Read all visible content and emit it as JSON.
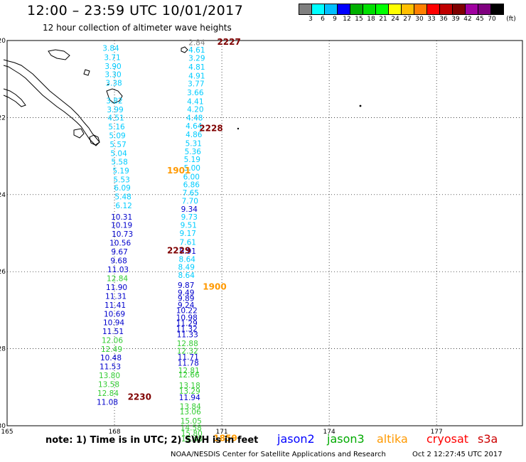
{
  "header": {
    "title": "12:00 – 23:59 UTC 10/01/2017",
    "subtitle": "12 hour collection of altimeter wave heights"
  },
  "colorbar": {
    "unit": "(ft)",
    "labels": [
      "3",
      "6",
      "9",
      "12",
      "15",
      "18",
      "21",
      "24",
      "27",
      "30",
      "33",
      "36",
      "39",
      "42",
      "45",
      "70"
    ],
    "colors": [
      "#7f7f7f",
      "#00ffff",
      "#00bfff",
      "#0000ff",
      "#00b000",
      "#00e000",
      "#00ff00",
      "#ffff00",
      "#ffbf00",
      "#ff8000",
      "#ff0000",
      "#c00000",
      "#7f0000",
      "#a000a0",
      "#7f007f",
      "#000000"
    ]
  },
  "map": {
    "lat_labels": [
      "-20",
      "-22",
      "-24",
      "-26",
      "-28",
      "-30"
    ],
    "lon_labels": [
      "165",
      "168",
      "171",
      "174",
      "177"
    ],
    "tracks": [
      {
        "satellite": "cryosat",
        "time": "2227",
        "lon_start": 170.3,
        "points": [
          {
            "lat": -20.05,
            "dlon": 0.0,
            "v": "2.84",
            "c": "#7f7f7f"
          },
          {
            "lat": -20.24,
            "dlon": 0.0,
            "v": "4.61",
            "c": "#00ccff"
          },
          {
            "lat": -20.45,
            "dlon": 0.0,
            "v": "3.29",
            "c": "#00ccff"
          },
          {
            "lat": -20.68,
            "dlon": 0.0,
            "v": "4.81",
            "c": "#00ccff"
          },
          {
            "lat": -20.91,
            "dlon": 0.0,
            "v": "4.91",
            "c": "#00ccff"
          },
          {
            "lat": -21.12,
            "dlon": -0.02,
            "v": "3.77",
            "c": "#00ccff"
          },
          {
            "lat": -21.35,
            "dlon": -0.04,
            "v": "3.66",
            "c": "#00ccff"
          },
          {
            "lat": -21.58,
            "dlon": -0.04,
            "v": "4.41",
            "c": "#00ccff"
          },
          {
            "lat": -21.78,
            "dlon": -0.04,
            "v": "4.20",
            "c": "#00ccff"
          },
          {
            "lat": -22.0,
            "dlon": -0.06,
            "v": "4.48",
            "c": "#00ccff"
          },
          {
            "lat": -22.21,
            "dlon": -0.08,
            "v": "4.64",
            "c": "#00ccff"
          },
          {
            "lat": -22.44,
            "dlon": -0.08,
            "v": "4.86",
            "c": "#00ccff"
          },
          {
            "lat": -22.67,
            "dlon": -0.09,
            "v": "5.31",
            "c": "#00ccff"
          },
          {
            "lat": -22.88,
            "dlon": -0.11,
            "v": "5.36",
            "c": "#00ccff"
          },
          {
            "lat": -23.08,
            "dlon": -0.13,
            "v": "5.19",
            "c": "#00ccff"
          },
          {
            "lat": -23.3,
            "dlon": -0.13,
            "v": "5.00",
            "c": "#00ccff"
          },
          {
            "lat": -23.53,
            "dlon": -0.15,
            "v": "6.00",
            "c": "#00ccff"
          },
          {
            "lat": -23.74,
            "dlon": -0.15,
            "v": "6.86",
            "c": "#00ccff"
          },
          {
            "lat": -23.95,
            "dlon": -0.17,
            "v": "7.65",
            "c": "#00ccff"
          },
          {
            "lat": -24.16,
            "dlon": -0.19,
            "v": "7.70",
            "c": "#00ccff"
          },
          {
            "lat": -24.37,
            "dlon": -0.21,
            "v": "9.34",
            "c": "#0000cc"
          },
          {
            "lat": -24.58,
            "dlon": -0.21,
            "v": "9.73",
            "c": "#00ccff"
          },
          {
            "lat": -24.79,
            "dlon": -0.23,
            "v": "9.51",
            "c": "#00ccff"
          },
          {
            "lat": -25.0,
            "dlon": -0.25,
            "v": "9.17",
            "c": "#00ccff"
          },
          {
            "lat": -25.23,
            "dlon": -0.25,
            "v": "7.61",
            "c": "#00ccff"
          },
          {
            "lat": -25.46,
            "dlon": -0.25,
            "v": "9.91",
            "c": "#0000cc"
          },
          {
            "lat": -25.67,
            "dlon": -0.27,
            "v": "8.64",
            "c": "#00ccff"
          },
          {
            "lat": -25.88,
            "dlon": -0.29,
            "v": "8.49",
            "c": "#00ccff"
          },
          {
            "lat": -26.09,
            "dlon": -0.29,
            "v": "8.64",
            "c": "#00ccff"
          }
        ]
      },
      {
        "satellite": "cryosat",
        "time": "2228",
        "lon_start": 170.1,
        "points": []
      },
      {
        "satellite": "cryosat",
        "time": "2229",
        "lon_start": 169.7,
        "points": []
      },
      {
        "satellite": "cryosat",
        "time": "2230",
        "lon_start": 168.2,
        "points": []
      },
      {
        "satellite": "altika",
        "time": "1901",
        "lon_start": 169.7,
        "points": []
      },
      {
        "satellite": "altika",
        "time": "1900",
        "lon_start": 170.0,
        "points": [
          {
            "lat": -26.35,
            "dlon": 0.0,
            "v": "9.87",
            "c": "#0000cc"
          },
          {
            "lat": -26.54,
            "dlon": 0.0,
            "v": "9.49",
            "c": "#0000cc"
          },
          {
            "lat": -26.69,
            "dlon": 0.0,
            "v": "9.89",
            "c": "#0000cc"
          },
          {
            "lat": -26.86,
            "dlon": 0.0,
            "v": "9.24",
            "c": "#0000cc"
          },
          {
            "lat": -27.0,
            "dlon": 0.02,
            "v": "10.22",
            "c": "#0000cc"
          },
          {
            "lat": -27.19,
            "dlon": 0.02,
            "v": "10.98",
            "c": "#0000cc"
          },
          {
            "lat": -27.33,
            "dlon": 0.02,
            "v": "11.29",
            "c": "#0000cc"
          },
          {
            "lat": -27.48,
            "dlon": 0.02,
            "v": "11.32",
            "c": "#0000cc"
          },
          {
            "lat": -27.63,
            "dlon": 0.04,
            "v": "11.33",
            "c": "#0000cc"
          },
          {
            "lat": -27.86,
            "dlon": 0.04,
            "v": "12.88",
            "c": "#33cc33"
          },
          {
            "lat": -28.05,
            "dlon": 0.04,
            "v": "12.32",
            "c": "#33cc33"
          },
          {
            "lat": -28.21,
            "dlon": 0.06,
            "v": "11.71",
            "c": "#0000cc"
          },
          {
            "lat": -28.37,
            "dlon": 0.06,
            "v": "11.78",
            "c": "#0000cc"
          },
          {
            "lat": -28.56,
            "dlon": 0.08,
            "v": "12.81",
            "c": "#33cc33"
          },
          {
            "lat": -28.67,
            "dlon": 0.08,
            "v": "12.66",
            "c": "#33cc33"
          },
          {
            "lat": -28.95,
            "dlon": 0.1,
            "v": "13.18",
            "c": "#33cc33"
          },
          {
            "lat": -29.1,
            "dlon": 0.1,
            "v": "13.29",
            "c": "#33cc33"
          },
          {
            "lat": -29.26,
            "dlon": 0.1,
            "v": "11.94",
            "c": "#0000cc"
          },
          {
            "lat": -29.49,
            "dlon": 0.12,
            "v": "13.84",
            "c": "#33cc33"
          },
          {
            "lat": -29.63,
            "dlon": 0.12,
            "v": "13.06",
            "c": "#33cc33"
          },
          {
            "lat": -29.87,
            "dlon": 0.14,
            "v": "15.05",
            "c": "#33cc33"
          },
          {
            "lat": -30.05,
            "dlon": 0.14,
            "v": "14.58",
            "c": "#33cc33"
          },
          {
            "lat": -30.19,
            "dlon": 0.16,
            "v": "15.80",
            "c": "#33cc33"
          },
          {
            "lat": -30.33,
            "dlon": 0.16,
            "v": "15.48",
            "c": "#33cc33"
          }
        ]
      },
      {
        "satellite": "altika",
        "time": "1859",
        "lon_start": 170.7,
        "points": []
      },
      {
        "satellite": "track-west",
        "time": "",
        "lon_start": 167.9,
        "points": [
          {
            "lat": -20.19,
            "dlon": 0.0,
            "v": "3.84",
            "c": "#00ccff"
          },
          {
            "lat": -20.43,
            "dlon": 0.04,
            "v": "3.71",
            "c": "#00ccff"
          },
          {
            "lat": -20.66,
            "dlon": 0.06,
            "v": "3.90",
            "c": "#00ccff"
          },
          {
            "lat": -20.88,
            "dlon": 0.06,
            "v": "3.30",
            "c": "#00ccff"
          },
          {
            "lat": -21.1,
            "dlon": 0.08,
            "v": "3.38",
            "c": "#00ccff"
          },
          {
            "lat": -21.56,
            "dlon": 0.1,
            "v": "3.82",
            "c": "#00ccff"
          },
          {
            "lat": -21.79,
            "dlon": 0.12,
            "v": "3.99",
            "c": "#00ccff"
          },
          {
            "lat": -22.0,
            "dlon": 0.14,
            "v": "4.51",
            "c": "#00ccff"
          },
          {
            "lat": -22.23,
            "dlon": 0.16,
            "v": "5.16",
            "c": "#00ccff"
          },
          {
            "lat": -22.46,
            "dlon": 0.18,
            "v": "5.09",
            "c": "#00ccff"
          },
          {
            "lat": -22.69,
            "dlon": 0.2,
            "v": "5.57",
            "c": "#00ccff"
          },
          {
            "lat": -22.92,
            "dlon": 0.22,
            "v": "5.04",
            "c": "#00ccff"
          },
          {
            "lat": -23.15,
            "dlon": 0.24,
            "v": "5.58",
            "c": "#00ccff"
          },
          {
            "lat": -23.38,
            "dlon": 0.28,
            "v": "5.19",
            "c": "#00ccff"
          },
          {
            "lat": -23.61,
            "dlon": 0.3,
            "v": "5.53",
            "c": "#00ccff"
          },
          {
            "lat": -23.82,
            "dlon": 0.32,
            "v": "6.09",
            "c": "#00ccff"
          },
          {
            "lat": -24.05,
            "dlon": 0.34,
            "v": "5.48",
            "c": "#00ccff"
          },
          {
            "lat": -24.28,
            "dlon": 0.36,
            "v": "6.12",
            "c": "#00ccff"
          },
          {
            "lat": -24.58,
            "dlon": 0.3,
            "v": "10.31",
            "c": "#0000cc"
          },
          {
            "lat": -24.79,
            "dlon": 0.3,
            "v": "10.19",
            "c": "#0000cc"
          },
          {
            "lat": -25.02,
            "dlon": 0.32,
            "v": "10.73",
            "c": "#0000cc"
          },
          {
            "lat": -25.25,
            "dlon": 0.26,
            "v": "10.56",
            "c": "#0000cc"
          },
          {
            "lat": -25.48,
            "dlon": 0.24,
            "v": "9.67",
            "c": "#0000cc"
          },
          {
            "lat": -25.71,
            "dlon": 0.22,
            "v": "9.68",
            "c": "#0000cc"
          },
          {
            "lat": -25.94,
            "dlon": 0.2,
            "v": "11.03",
            "c": "#0000cc"
          },
          {
            "lat": -26.17,
            "dlon": 0.18,
            "v": "12.84",
            "c": "#33cc33"
          },
          {
            "lat": -26.4,
            "dlon": 0.16,
            "v": "11.90",
            "c": "#0000cc"
          },
          {
            "lat": -26.63,
            "dlon": 0.14,
            "v": "11.31",
            "c": "#0000cc"
          },
          {
            "lat": -26.86,
            "dlon": 0.12,
            "v": "11.41",
            "c": "#0000cc"
          },
          {
            "lat": -27.09,
            "dlon": 0.1,
            "v": "10.69",
            "c": "#0000cc"
          },
          {
            "lat": -27.32,
            "dlon": 0.08,
            "v": "10.94",
            "c": "#0000cc"
          },
          {
            "lat": -27.55,
            "dlon": 0.06,
            "v": "11.51",
            "c": "#0000cc"
          },
          {
            "lat": -27.78,
            "dlon": 0.04,
            "v": "12.06",
            "c": "#33cc33"
          },
          {
            "lat": -28.01,
            "dlon": 0.02,
            "v": "12.49",
            "c": "#33cc33"
          },
          {
            "lat": -28.23,
            "dlon": 0.0,
            "v": "10.48",
            "c": "#0000cc"
          },
          {
            "lat": -28.46,
            "dlon": -0.02,
            "v": "11.53",
            "c": "#0000cc"
          },
          {
            "lat": -28.69,
            "dlon": -0.04,
            "v": "13.80",
            "c": "#33cc33"
          },
          {
            "lat": -28.92,
            "dlon": -0.06,
            "v": "13.58",
            "c": "#33cc33"
          },
          {
            "lat": -29.15,
            "dlon": -0.08,
            "v": "12.84",
            "c": "#33cc33"
          },
          {
            "lat": -29.38,
            "dlon": -0.1,
            "v": "11.08",
            "c": "#0000cc"
          }
        ]
      }
    ]
  },
  "labels": {
    "track_times": [
      {
        "text": "2227",
        "color": "#7f0000"
      },
      {
        "text": "2228",
        "color": "#7f0000"
      },
      {
        "text": "1901",
        "color": "#ff9900"
      },
      {
        "text": "2229",
        "color": "#7f0000"
      },
      {
        "text": "1900",
        "color": "#ff9900"
      },
      {
        "text": "2230",
        "color": "#7f0000"
      },
      {
        "text": "1859",
        "color": "#ff9900"
      }
    ]
  },
  "footer": {
    "note": "note: 1) Time is in UTC; 2) SWH is in feet",
    "legend": [
      {
        "text": "jason2",
        "color": "#0000ff"
      },
      {
        "text": "jason3",
        "color": "#00aa00"
      },
      {
        "text": "altika",
        "color": "#ff9900"
      },
      {
        "text": "cryosat",
        "color": "#ff0000"
      },
      {
        "text": "s3a",
        "color": "#cc0000"
      }
    ],
    "credit": "NOAA/NESDIS Center for Satellite Applications and Research",
    "date": "Oct 2 12:27:45 UTC 2017"
  }
}
